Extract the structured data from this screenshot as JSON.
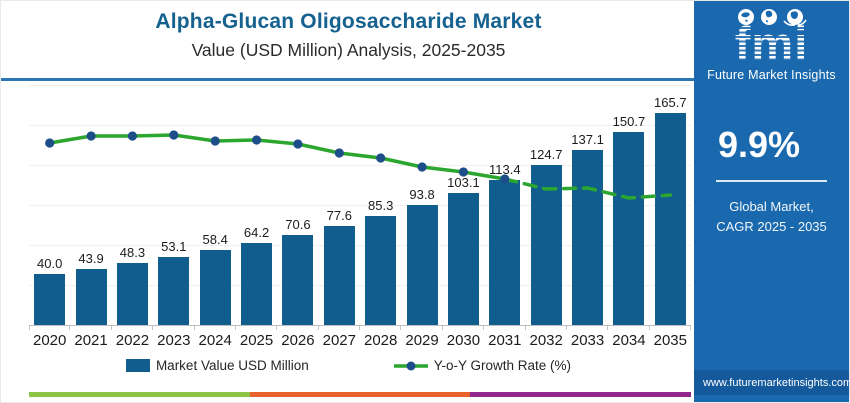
{
  "header": {
    "title": "Alpha-Glucan Oligosaccharide Market",
    "subtitle": "Value (USD Million) Analysis, 2025-2035"
  },
  "chart_data": {
    "type": "bar",
    "title": "Alpha-Glucan Oligosaccharide Market Value (USD Million) Analysis, 2025-2035",
    "categories": [
      "2020",
      "2021",
      "2022",
      "2023",
      "2024",
      "2025",
      "2026",
      "2027",
      "2028",
      "2029",
      "2030",
      "2031",
      "2032",
      "2033",
      "2034",
      "2035"
    ],
    "series": [
      {
        "name": "Market Value USD Million",
        "type": "bar",
        "color": "#115E8E",
        "values": [
          40.0,
          43.9,
          48.3,
          53.1,
          58.4,
          64.2,
          70.6,
          77.6,
          85.3,
          93.8,
          103.1,
          113.4,
          124.7,
          137.1,
          150.7,
          165.7
        ]
      },
      {
        "name": "Y-o-Y Growth Rate (%)",
        "type": "line",
        "color": "#2BA62E",
        "marker_color": "#1D4E89",
        "solid_until_index": 11,
        "plot_y": [
          58,
          51,
          51,
          50,
          56,
          55,
          59,
          68,
          73,
          82,
          87,
          94,
          104,
          103,
          113,
          110
        ]
      }
    ],
    "xlabel": "",
    "ylabel": "",
    "legend_position": "bottom",
    "grid": "faint-horizontal-lines"
  },
  "sidebar": {
    "background": "#1A69AE",
    "logo_text": "fmi",
    "logo_caption": "Future Market Insights",
    "cagr_value": "9.9%",
    "cagr_label_line1": "Global Market,",
    "cagr_label_line2": "CAGR 2025 - 2035",
    "website": "www.futuremarketinsights.com"
  },
  "footer_strip": {
    "segments": [
      {
        "color": "#8CC544"
      },
      {
        "color": "#E8602C"
      },
      {
        "color": "#90278E"
      }
    ]
  }
}
